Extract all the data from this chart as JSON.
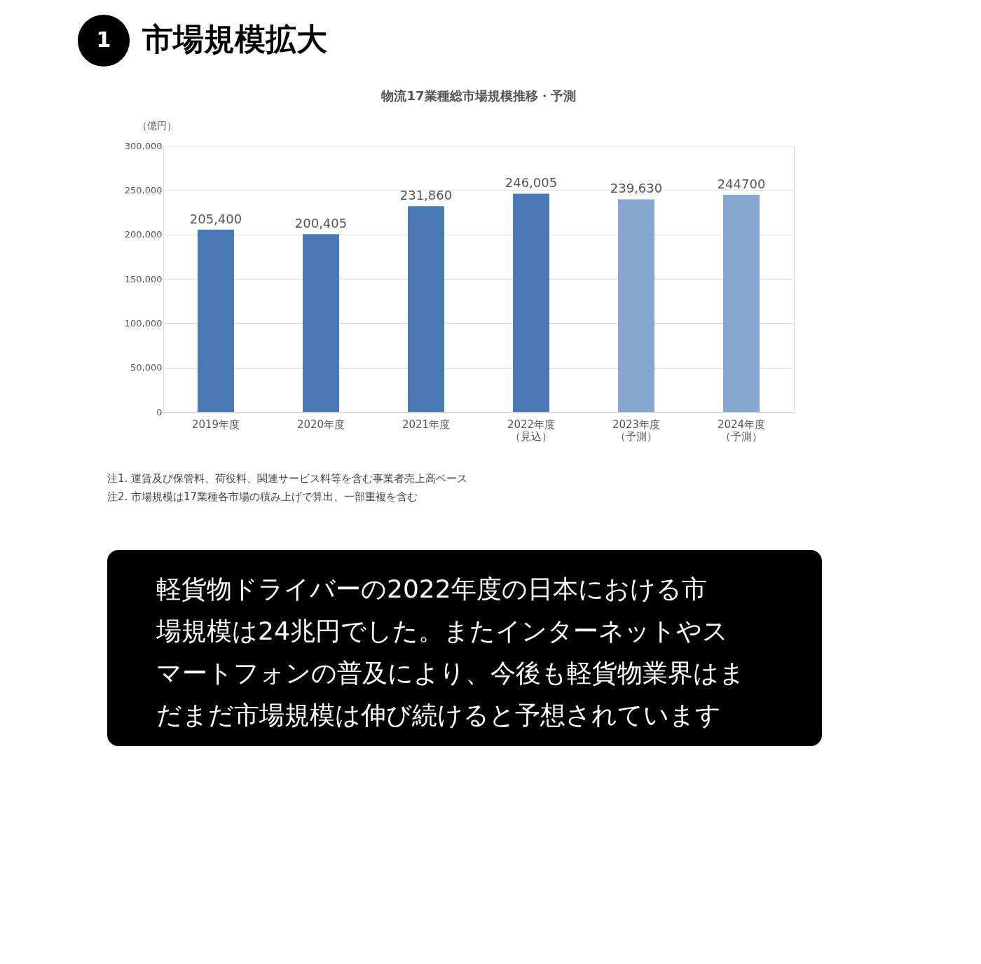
{
  "chart_data": {
    "type": "bar",
    "title": "市場規模拡大",
    "subtitle": "物流17業種総市場規模推移・予測",
    "ylabel": "（億円）",
    "categories": [
      "2019年度",
      "2020年度",
      "2021年度",
      "2022年度（見込）",
      "2023年度（予測）",
      "2024年度（予測）"
    ],
    "values": [
      205400,
      200405,
      231860,
      246005,
      239630,
      244700
    ],
    "colors": [
      "#4a7ab5",
      "#4a7ab5",
      "#4a7ab5",
      "#4a7ab5",
      "#86a8d0",
      "#86a8d0"
    ],
    "value_labels": [
      "205,400",
      "200,405",
      "231,860",
      "246,005",
      "239,630",
      "244700"
    ],
    "ylim": [
      0,
      300000
    ],
    "yticks": [
      0,
      {
        "value": 50000,
        "label": "50,000"
      },
      {
        "value": 100000,
        "label": "100,000"
      },
      {
        "value": 150000,
        "label": "150,000"
      },
      {
        "value": 200000,
        "label": "200,000"
      },
      {
        "value": 250000,
        "label": "250,000"
      },
      {
        "value": 300000,
        "label": "300,000"
      }
    ],
    "grid": "y",
    "annotations": [
      "1",
      "注1. 運賃及び保管料、荷役料、関連サービス料等を含む事業者売上高ベース",
      "注2. 市場規模は17業種各市場の積み上げで算出、一部重複を含む",
      "軽貨物ドライバーの2022年度の日本における市場規模は24兆円でした。またインターネットやスマートフォンの普及により、今後も軽貨物業界はまだまだ市場規模は伸び続けると予想されています"
    ]
  }
}
